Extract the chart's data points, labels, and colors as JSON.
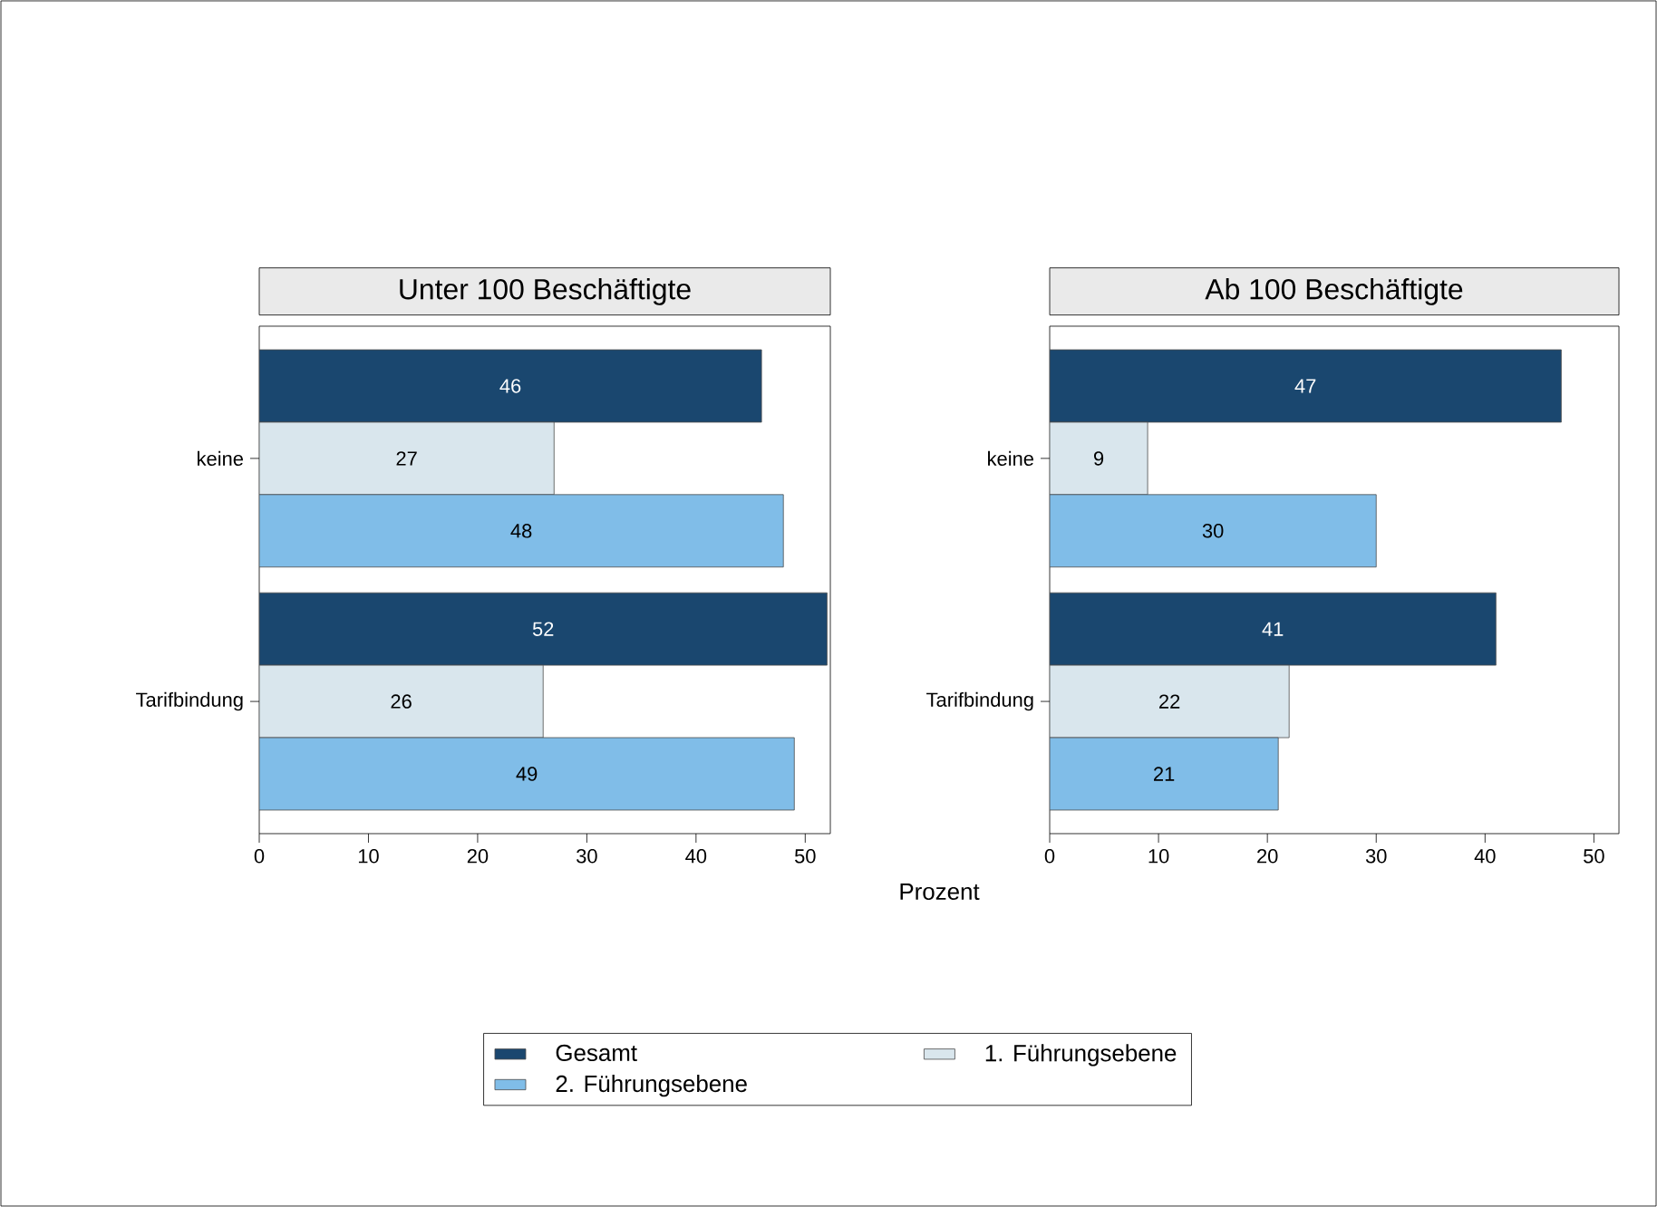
{
  "chart_data": [
    {
      "type": "bar",
      "orientation": "horizontal",
      "title": "Unter 100 Beschäftigte",
      "xlabel": "Prozent",
      "categories": [
        "keine",
        "Tarifbindung"
      ],
      "series": [
        {
          "name": "Gesamt",
          "color": "#1a476f",
          "values": [
            46,
            52
          ]
        },
        {
          "name": "1. Führungsebene",
          "color": "#d9e6ed",
          "values": [
            27,
            26
          ]
        },
        {
          "name": "2. Führungsebene",
          "color": "#80bde8",
          "values": [
            48,
            49
          ]
        }
      ],
      "xlim": [
        0,
        52.3
      ],
      "xticks": [
        0,
        10,
        20,
        30,
        40,
        50
      ],
      "data_labels": true,
      "legend": "bottom"
    },
    {
      "type": "bar",
      "orientation": "horizontal",
      "title": "Ab 100 Beschäftigte",
      "categories": [
        "keine",
        "Tarifbindung"
      ],
      "series": [
        {
          "color": "#1a476f",
          "values": [
            47,
            41
          ]
        },
        {
          "color": "#d9e6ed",
          "values": [
            9,
            22
          ]
        },
        {
          "color": "#80bde8",
          "values": [
            30,
            21
          ]
        }
      ],
      "xlim": [
        0,
        52.3
      ],
      "xticks": [
        0,
        10,
        20,
        30,
        40,
        50
      ],
      "data_labels": true,
      "legend": false
    }
  ]
}
